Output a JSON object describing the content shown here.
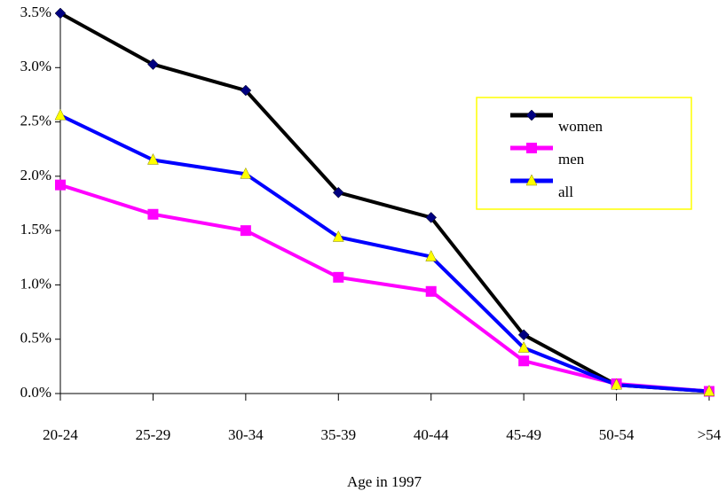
{
  "chart_data": {
    "type": "line",
    "x_label": "Age in 1997",
    "categories": [
      "20-24",
      "25-29",
      "30-34",
      "35-39",
      "40-44",
      "45-49",
      "50-54",
      ">54"
    ],
    "series": [
      {
        "name": "women",
        "color": "#000000",
        "marker": "diamond",
        "marker_color": "#000080",
        "values": [
          3.5,
          3.03,
          2.79,
          1.85,
          1.62,
          0.54,
          0.08,
          0.02
        ]
      },
      {
        "name": "men",
        "color": "#ff00ff",
        "marker": "square",
        "marker_color": "#ff00ff",
        "values": [
          1.92,
          1.65,
          1.5,
          1.07,
          0.94,
          0.3,
          0.09,
          0.02
        ]
      },
      {
        "name": "all",
        "color": "#0000ff",
        "marker": "triangle",
        "marker_color": "#ffff00",
        "values": [
          2.56,
          2.15,
          2.02,
          1.44,
          1.26,
          0.42,
          0.08,
          0.02
        ]
      }
    ],
    "ylim": [
      0,
      3.5
    ],
    "yticks": [
      {
        "value": 0,
        "label": "0.0%"
      },
      {
        "value": 0.5,
        "label": "0.5%"
      },
      {
        "value": 1,
        "label": "1.0%"
      },
      {
        "value": 1.5,
        "label": "1.5%"
      },
      {
        "value": 2,
        "label": "2.0%"
      },
      {
        "value": 2.5,
        "label": "2.5%"
      },
      {
        "value": 3,
        "label": "3.0%"
      },
      {
        "value": 3.5,
        "label": "3.5%"
      }
    ],
    "legend_position": "upper right",
    "legend_border_color": "#ffff00"
  }
}
